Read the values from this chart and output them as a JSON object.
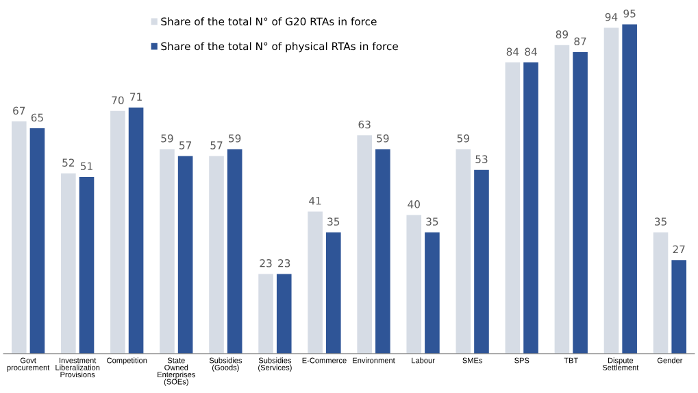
{
  "chart_data": {
    "type": "bar",
    "categories": [
      "Govt\nprocurement",
      "Investment\nLiberalization\nProvisions",
      "Competition",
      "State\nOwned\nEnterprises\n(SOEs)",
      "Subsidies\n(Goods)",
      "Subsidies\n(Services)",
      "E-Commerce",
      "Environment",
      "Labour",
      "SMEs",
      "SPS",
      "TBT",
      "Dispute\nSettlement",
      "Gender"
    ],
    "series": [
      {
        "name": "Share of the total N° of G20 RTAs in force",
        "color": "#d6dce5",
        "values": [
          67,
          52,
          70,
          59,
          57,
          23,
          41,
          63,
          40,
          59,
          84,
          89,
          94,
          35
        ]
      },
      {
        "name": "Share of the total N° of physical RTAs in force",
        "color": "#2f5597",
        "values": [
          65,
          51,
          71,
          57,
          59,
          23,
          35,
          59,
          35,
          53,
          84,
          87,
          95,
          27
        ]
      }
    ],
    "data_labels": true,
    "tick_labels": "x",
    "grid": false,
    "legend": "top left"
  }
}
